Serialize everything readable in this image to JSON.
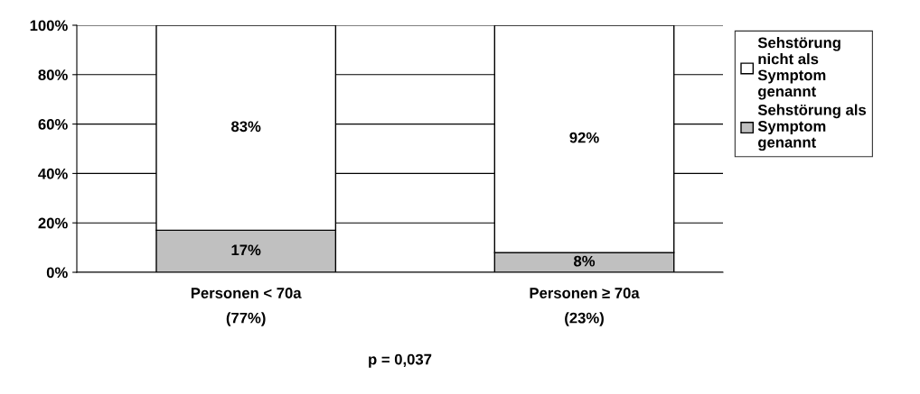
{
  "chart_data": {
    "type": "bar",
    "stacked": true,
    "categories": [
      "Personen < 70a\n(77%)",
      "Personen ≥ 70a\n(23%)"
    ],
    "series": [
      {
        "name": "Sehstörung als Symptom genannt",
        "color": "#c0c0c0",
        "values": [
          17,
          8
        ],
        "value_labels": [
          "17%",
          "8%"
        ]
      },
      {
        "name": "Sehstörung nicht als Symptom genannt",
        "color": "#ffffff",
        "values": [
          83,
          92
        ],
        "value_labels": [
          "83%",
          "92%"
        ]
      }
    ],
    "ylim": [
      0,
      100
    ],
    "yticks": [
      {
        "value": 0,
        "label": "0%"
      },
      {
        "value": 20,
        "label": "20%"
      },
      {
        "value": 40,
        "label": "40%"
      },
      {
        "value": 60,
        "label": "60%"
      },
      {
        "value": 80,
        "label": "80%"
      },
      {
        "value": 100,
        "label": "100%"
      }
    ],
    "grid": "y",
    "legend": "right",
    "annotations": [
      "p = 0,037"
    ]
  }
}
